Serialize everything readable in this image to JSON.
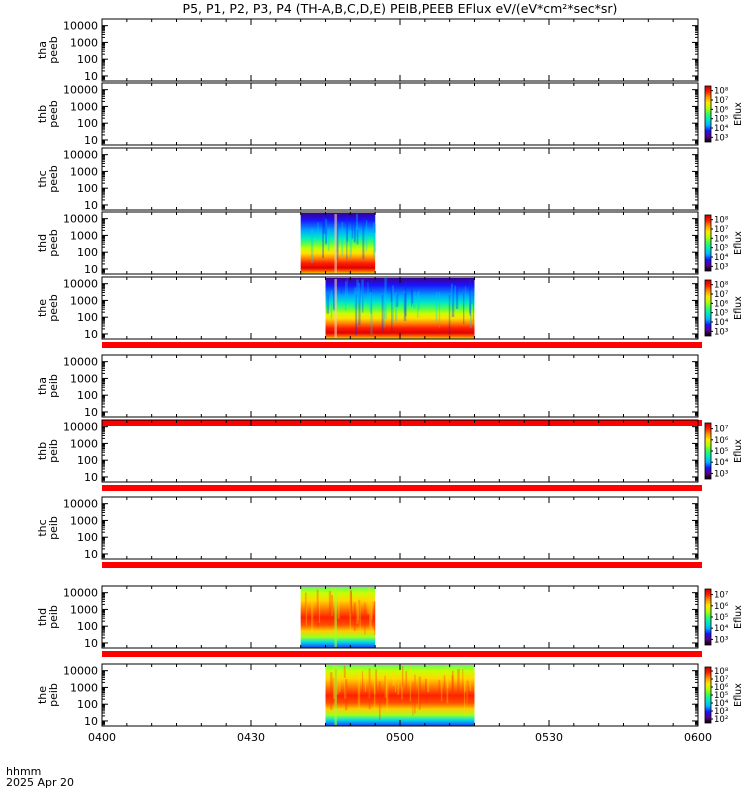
{
  "title": "P5, P1, P2, P3, P4 (TH-A,B,C,D,E) PEIB,PEEB EFlux eV/(eV*cm²*sec*sr)",
  "footer": {
    "time_format": "hhmm",
    "date": "2025 Apr 20"
  },
  "colors": {
    "red_band": "#ff0000",
    "colormap": [
      "#ffffff",
      "#000000",
      "#5b008a",
      "#1a14ff",
      "#00b4ff",
      "#00e8c8",
      "#30ff60",
      "#b0ff00",
      "#ffe800",
      "#ff9900",
      "#ff2000",
      "#c40000"
    ]
  },
  "chart_data": {
    "type": "heatmap",
    "x_axis": {
      "range": [
        "0400",
        "0600"
      ],
      "tick_labels": [
        "0400",
        "0430",
        "0500",
        "0530",
        "0600"
      ]
    },
    "y_axis": {
      "scale": "log",
      "range": [
        5,
        25000
      ],
      "tick_labels": [
        "10",
        "100",
        "1000",
        "10000"
      ]
    },
    "panels": [
      {
        "label_top": "tha",
        "label_bottom": "peeb",
        "has_data": false,
        "colorbar": null,
        "red_band_below": false
      },
      {
        "label_top": "thb",
        "label_bottom": "peeb",
        "has_data": false,
        "colorbar": {
          "label": "Eflux",
          "ticks": [
            "10³",
            "10⁴",
            "10⁵",
            "10⁶",
            "10⁷",
            "10⁸"
          ]
        },
        "red_band_below": false
      },
      {
        "label_top": "thc",
        "label_bottom": "peeb",
        "has_data": false,
        "colorbar": null,
        "red_band_below": false
      },
      {
        "label_top": "thd",
        "label_bottom": "peeb",
        "has_data": true,
        "data_start": "0440",
        "data_end": "0455",
        "colorbar": {
          "label": "Eflux",
          "ticks": [
            "10³",
            "10⁴",
            "10⁵",
            "10⁶",
            "10⁷",
            "10⁸"
          ]
        },
        "red_band_below": false
      },
      {
        "label_top": "the",
        "label_bottom": "peeb",
        "has_data": true,
        "data_start": "0445",
        "data_end": "0515",
        "colorbar": {
          "label": "Eflux",
          "ticks": [
            "10³",
            "10⁴",
            "10⁵",
            "10⁶",
            "10⁷",
            "10⁸"
          ]
        },
        "red_band_below": true
      },
      {
        "label_top": "tha",
        "label_bottom": "peib",
        "has_data": false,
        "colorbar": null,
        "red_band_below": true
      },
      {
        "label_top": "thb",
        "label_bottom": "peib",
        "has_data": false,
        "colorbar": {
          "label": "Eflux",
          "ticks": [
            "10³",
            "10⁴",
            "10⁵",
            "10⁶",
            "10⁷"
          ]
        },
        "red_band_below": true
      },
      {
        "label_top": "thc",
        "label_bottom": "peib",
        "has_data": false,
        "colorbar": null,
        "red_band_below": true
      },
      {
        "label_top": "thd",
        "label_bottom": "peib",
        "has_data": true,
        "data_start": "0440",
        "data_end": "0455",
        "colorbar": {
          "label": "Eflux",
          "ticks": [
            "10³",
            "10⁴",
            "10⁵",
            "10⁶",
            "10⁷"
          ]
        },
        "red_band_below": true
      },
      {
        "label_top": "the",
        "label_bottom": "peib",
        "has_data": true,
        "data_start": "0445",
        "data_end": "0515",
        "colorbar": {
          "label": "Eflux",
          "ticks": [
            "10²",
            "10³",
            "10⁴",
            "10⁵",
            "10⁶",
            "10⁷",
            "10⁸"
          ]
        },
        "red_band_below": false
      }
    ]
  }
}
